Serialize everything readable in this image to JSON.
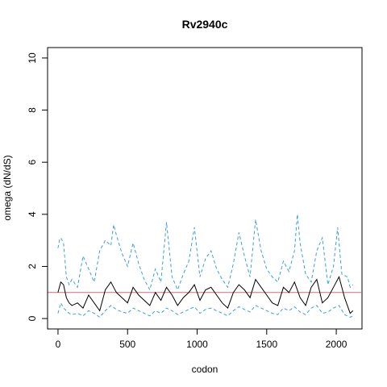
{
  "chart_data": {
    "type": "line",
    "title": "Rv2940c",
    "xlabel": "codon",
    "ylabel": "omega (dN/dS)",
    "xlim": [
      -75,
      2185
    ],
    "ylim": [
      -0.4,
      10.4
    ],
    "xticks": [
      0,
      500,
      1000,
      1500,
      2000
    ],
    "yticks": [
      0,
      2,
      4,
      6,
      8,
      10
    ],
    "reference_line": {
      "y": 1,
      "color": "#D4687A"
    },
    "colors": {
      "mean": "#000000",
      "bounds": "#3A9FDD"
    },
    "series": [
      {
        "role": "mean",
        "style": "solid",
        "x": [
          0,
          20,
          40,
          60,
          80,
          100,
          140,
          180,
          220,
          260,
          300,
          340,
          380,
          420,
          460,
          500,
          540,
          580,
          620,
          660,
          700,
          740,
          780,
          820,
          860,
          900,
          940,
          980,
          1020,
          1060,
          1100,
          1140,
          1180,
          1220,
          1260,
          1300,
          1340,
          1380,
          1420,
          1460,
          1500,
          1540,
          1580,
          1620,
          1660,
          1700,
          1740,
          1780,
          1820,
          1860,
          1900,
          1940,
          1980,
          2020,
          2060,
          2100,
          2120
        ],
        "y": [
          1.0,
          1.4,
          1.3,
          0.8,
          0.6,
          0.5,
          0.6,
          0.4,
          0.9,
          0.6,
          0.3,
          1.1,
          1.4,
          1.0,
          0.8,
          0.6,
          1.2,
          0.9,
          0.7,
          0.5,
          1.0,
          0.7,
          1.2,
          0.9,
          0.5,
          0.8,
          1.0,
          1.3,
          0.7,
          1.1,
          1.2,
          0.9,
          0.6,
          0.4,
          1.0,
          1.3,
          1.1,
          0.8,
          1.5,
          1.2,
          0.9,
          0.6,
          0.5,
          1.2,
          1.0,
          1.4,
          0.8,
          0.5,
          1.2,
          1.5,
          0.6,
          0.8,
          1.2,
          1.6,
          0.8,
          0.2,
          0.3
        ]
      },
      {
        "role": "upper",
        "style": "dashed",
        "x": [
          0,
          10,
          20,
          40,
          60,
          80,
          100,
          140,
          180,
          220,
          260,
          300,
          340,
          380,
          400,
          420,
          460,
          500,
          540,
          580,
          620,
          660,
          700,
          740,
          780,
          820,
          860,
          900,
          940,
          980,
          1020,
          1060,
          1100,
          1140,
          1180,
          1220,
          1260,
          1300,
          1340,
          1380,
          1420,
          1460,
          1500,
          1540,
          1580,
          1620,
          1660,
          1700,
          1720,
          1740,
          1780,
          1820,
          1860,
          1900,
          1940,
          1980,
          2010,
          2040,
          2080,
          2100,
          2120
        ],
        "y": [
          2.7,
          3.0,
          3.1,
          2.9,
          1.6,
          1.3,
          1.5,
          1.2,
          2.4,
          1.9,
          1.4,
          2.6,
          3.0,
          2.8,
          3.6,
          3.2,
          2.5,
          2.0,
          2.9,
          2.1,
          1.5,
          1.1,
          1.9,
          1.4,
          3.7,
          1.6,
          1.1,
          1.7,
          2.2,
          3.5,
          1.6,
          2.3,
          2.6,
          1.9,
          1.5,
          1.2,
          2.1,
          3.3,
          2.4,
          1.6,
          3.8,
          2.6,
          1.9,
          1.6,
          1.4,
          2.2,
          1.8,
          2.6,
          4.0,
          2.9,
          1.7,
          1.4,
          2.6,
          3.1,
          1.3,
          2.0,
          3.5,
          1.7,
          1.6,
          1.2,
          1.3
        ]
      },
      {
        "role": "lower",
        "style": "dashed",
        "x": [
          0,
          20,
          40,
          60,
          80,
          100,
          140,
          180,
          220,
          260,
          300,
          340,
          380,
          420,
          460,
          500,
          540,
          580,
          620,
          660,
          700,
          740,
          780,
          820,
          860,
          900,
          940,
          980,
          1020,
          1060,
          1100,
          1140,
          1180,
          1220,
          1260,
          1300,
          1340,
          1380,
          1420,
          1460,
          1500,
          1540,
          1580,
          1620,
          1660,
          1700,
          1740,
          1780,
          1820,
          1860,
          1900,
          1940,
          1980,
          2020,
          2060,
          2100,
          2120
        ],
        "y": [
          0.2,
          0.6,
          0.4,
          0.3,
          0.2,
          0.15,
          0.2,
          0.1,
          0.3,
          0.2,
          0.05,
          0.3,
          0.5,
          0.35,
          0.25,
          0.2,
          0.4,
          0.3,
          0.2,
          0.1,
          0.3,
          0.2,
          0.4,
          0.3,
          0.15,
          0.25,
          0.35,
          0.45,
          0.2,
          0.35,
          0.4,
          0.3,
          0.2,
          0.1,
          0.3,
          0.45,
          0.35,
          0.25,
          0.5,
          0.4,
          0.3,
          0.2,
          0.15,
          0.4,
          0.3,
          0.45,
          0.25,
          0.15,
          0.4,
          0.5,
          0.2,
          0.25,
          0.4,
          0.5,
          0.15,
          0.05,
          0.1
        ]
      }
    ]
  }
}
